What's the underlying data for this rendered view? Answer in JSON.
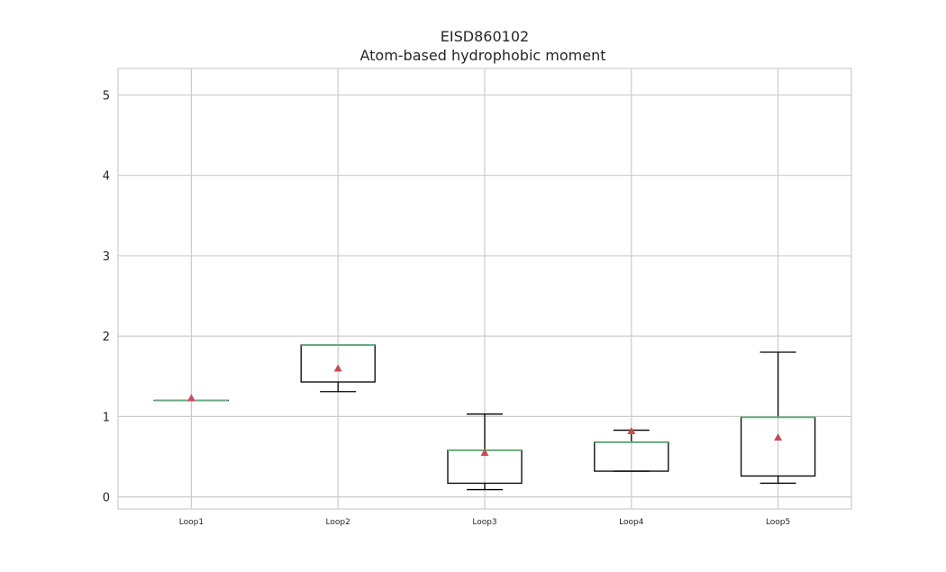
{
  "chart_data": {
    "type": "box",
    "title": "EISD860102",
    "subtitle": "Atom-based hydrophobic moment",
    "xlabel": "",
    "ylabel": "",
    "ylim": [
      -0.15,
      5.33
    ],
    "yticks": [
      0,
      1,
      2,
      3,
      4,
      5
    ],
    "grid": true,
    "categories": [
      "Loop1",
      "Loop2",
      "Loop3",
      "Loop4",
      "Loop5"
    ],
    "boxes": [
      {
        "label": "Loop1",
        "whislo": 1.2,
        "q1": 1.2,
        "median": 1.2,
        "q3": 1.2,
        "whishi": 1.2,
        "mean": 1.23
      },
      {
        "label": "Loop2",
        "whislo": 1.31,
        "q1": 1.43,
        "median": 1.89,
        "q3": 1.89,
        "whishi": 1.89,
        "mean": 1.6
      },
      {
        "label": "Loop3",
        "whislo": 0.09,
        "q1": 0.17,
        "median": 0.58,
        "q3": 0.58,
        "whishi": 1.03,
        "mean": 0.55
      },
      {
        "label": "Loop4",
        "whislo": 0.32,
        "q1": 0.32,
        "median": 0.68,
        "q3": 0.68,
        "whishi": 0.83,
        "mean": 0.82
      },
      {
        "label": "Loop5",
        "whislo": 0.17,
        "q1": 0.26,
        "median": 0.99,
        "q3": 0.99,
        "whishi": 1.8,
        "mean": 0.74
      }
    ],
    "colors": {
      "box": "#000000",
      "median": "#6aaa7f",
      "mean": "#c44e52",
      "grid": "#cccccc",
      "frame": "#cccccc"
    }
  }
}
